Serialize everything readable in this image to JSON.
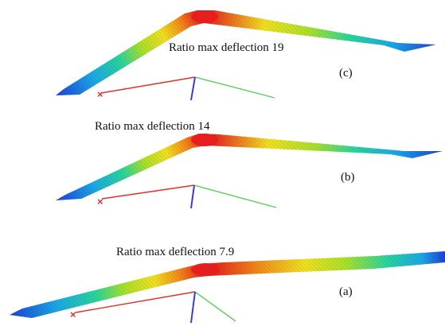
{
  "panels": [
    {
      "id": "c",
      "caption": "Ratio max deflection 19",
      "tag": "(c)",
      "ratio": 19
    },
    {
      "id": "b",
      "caption": "Ratio max deflection 14",
      "tag": "(b)",
      "ratio": 14
    },
    {
      "id": "a",
      "caption": "Ratio max deflection 7.9",
      "tag": "(a)",
      "ratio": 7.9
    }
  ],
  "colors": {
    "axis_x": "#e0302a",
    "axis_y": "#3a3ad8",
    "axis_z": "#5ccf5c",
    "contour_scale": [
      "#1f3fd6",
      "#1aa8e6",
      "#2ad49a",
      "#a8e02a",
      "#f0e020",
      "#f08a18",
      "#e61e1e"
    ]
  }
}
